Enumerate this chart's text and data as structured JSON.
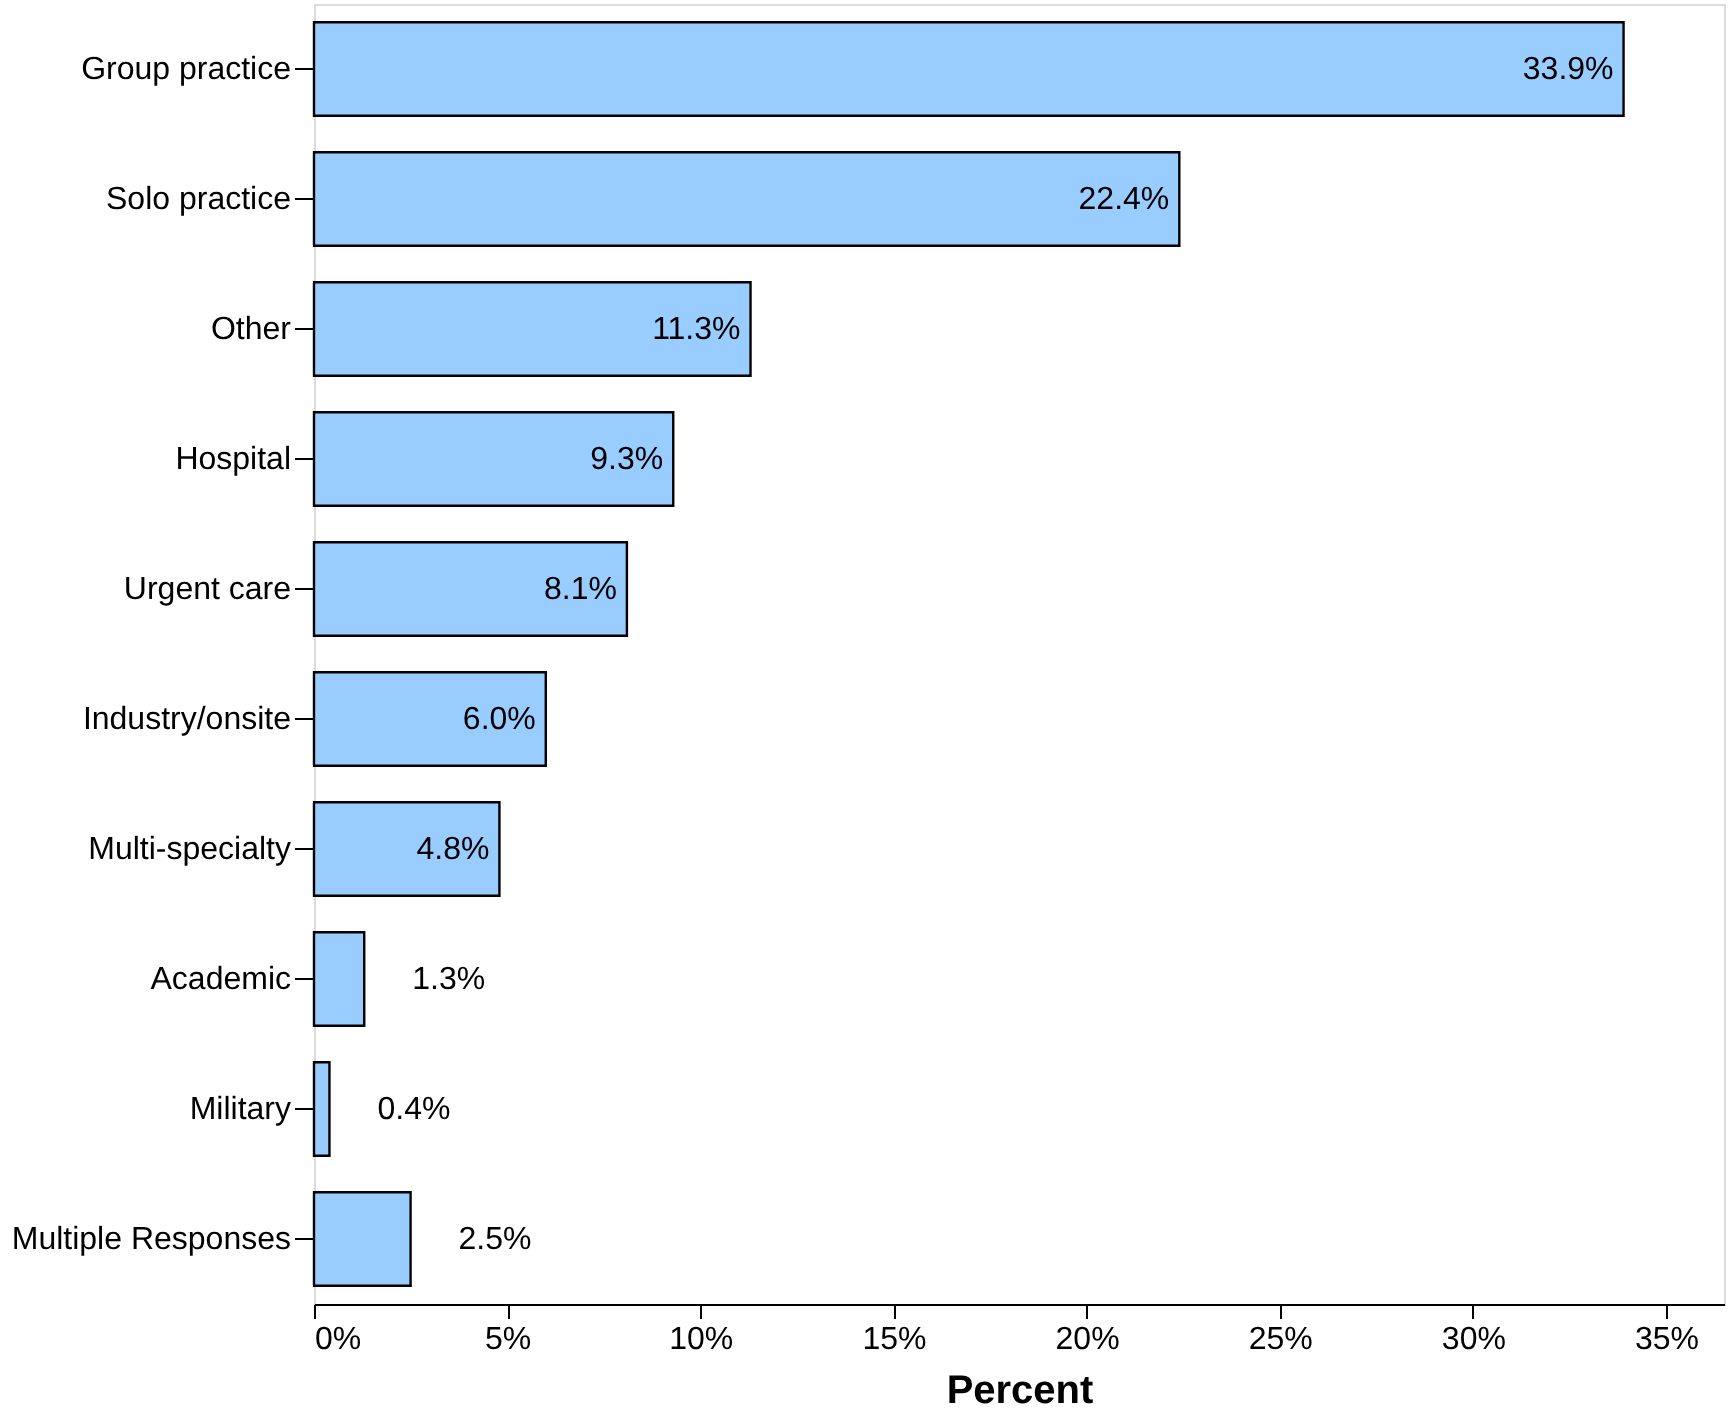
{
  "chart_data": {
    "type": "bar",
    "orientation": "horizontal",
    "xlabel": "Percent",
    "categories": [
      "Group practice",
      "Solo practice",
      "Other",
      "Hospital",
      "Urgent care",
      "Industry/onsite",
      "Multi-specialty",
      "Academic",
      "Military",
      "Multiple Responses"
    ],
    "values": [
      33.9,
      22.4,
      11.3,
      9.3,
      8.1,
      6.0,
      4.8,
      1.3,
      0.4,
      2.5
    ],
    "value_labels": [
      "33.9%",
      "22.4%",
      "11.3%",
      "9.3%",
      "8.1%",
      "6.0%",
      "4.8%",
      "1.3%",
      "0.4%",
      "2.5%"
    ],
    "color": "#99ccff",
    "xlim": [
      0,
      36.5
    ],
    "xticks": [
      {
        "value": 0,
        "label": "0%"
      },
      {
        "value": 5,
        "label": "5%"
      },
      {
        "value": 10,
        "label": "10%"
      },
      {
        "value": 15,
        "label": "15%"
      },
      {
        "value": 20,
        "label": "20%"
      },
      {
        "value": 25,
        "label": "25%"
      },
      {
        "value": 30,
        "label": "30%"
      },
      {
        "value": 35,
        "label": "35%"
      }
    ],
    "grid": false
  }
}
